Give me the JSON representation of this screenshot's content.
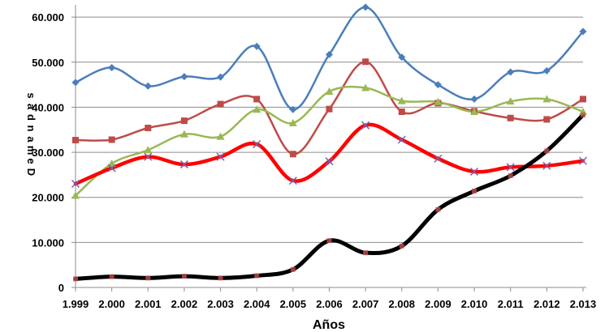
{
  "chart_data": {
    "type": "line",
    "title": "",
    "xlabel": "Años",
    "ylabel": "Demandas",
    "categories": [
      "1.999",
      "2.000",
      "2.001",
      "2.002",
      "2.003",
      "2.004",
      "2.005",
      "2.006",
      "2.007",
      "2.008",
      "2.009",
      "2.010",
      "2.011",
      "2.012",
      "2.013"
    ],
    "yticks": [
      "0",
      "10.000",
      "20.000",
      "30.000",
      "40.000",
      "50.000",
      "60.000"
    ],
    "ylim": [
      0,
      62000
    ],
    "grid": true,
    "legend": "none",
    "series": [
      {
        "color": "#4a7ebb",
        "marker": "diamond",
        "values": [
          45500,
          48800,
          44700,
          46800,
          46700,
          53500,
          39500,
          51700,
          62200,
          51100,
          45000,
          41800,
          47800,
          48100,
          56800
        ]
      },
      {
        "color": "#be4b48",
        "marker": "square",
        "values": [
          32700,
          32800,
          35400,
          37000,
          40700,
          41800,
          29600,
          39600,
          50100,
          39000,
          40900,
          39100,
          37600,
          37300,
          41800
        ]
      },
      {
        "color": "#98b954",
        "marker": "triangle",
        "values": [
          20400,
          27500,
          30500,
          34000,
          33500,
          39500,
          36500,
          43500,
          44300,
          41400,
          41200,
          39000,
          41300,
          41800,
          39000
        ]
      },
      {
        "color": "#ff0000",
        "marker": "x",
        "values": [
          23000,
          26500,
          29000,
          27300,
          29000,
          31800,
          23700,
          28000,
          36000,
          32800,
          28600,
          25700,
          26700,
          27000,
          28100
        ]
      },
      {
        "color": "#000000",
        "marker": "square",
        "values": [
          1900,
          2400,
          2100,
          2500,
          2100,
          2600,
          4000,
          10400,
          7700,
          9200,
          17300,
          21400,
          24800,
          30300,
          38300
        ]
      }
    ]
  }
}
